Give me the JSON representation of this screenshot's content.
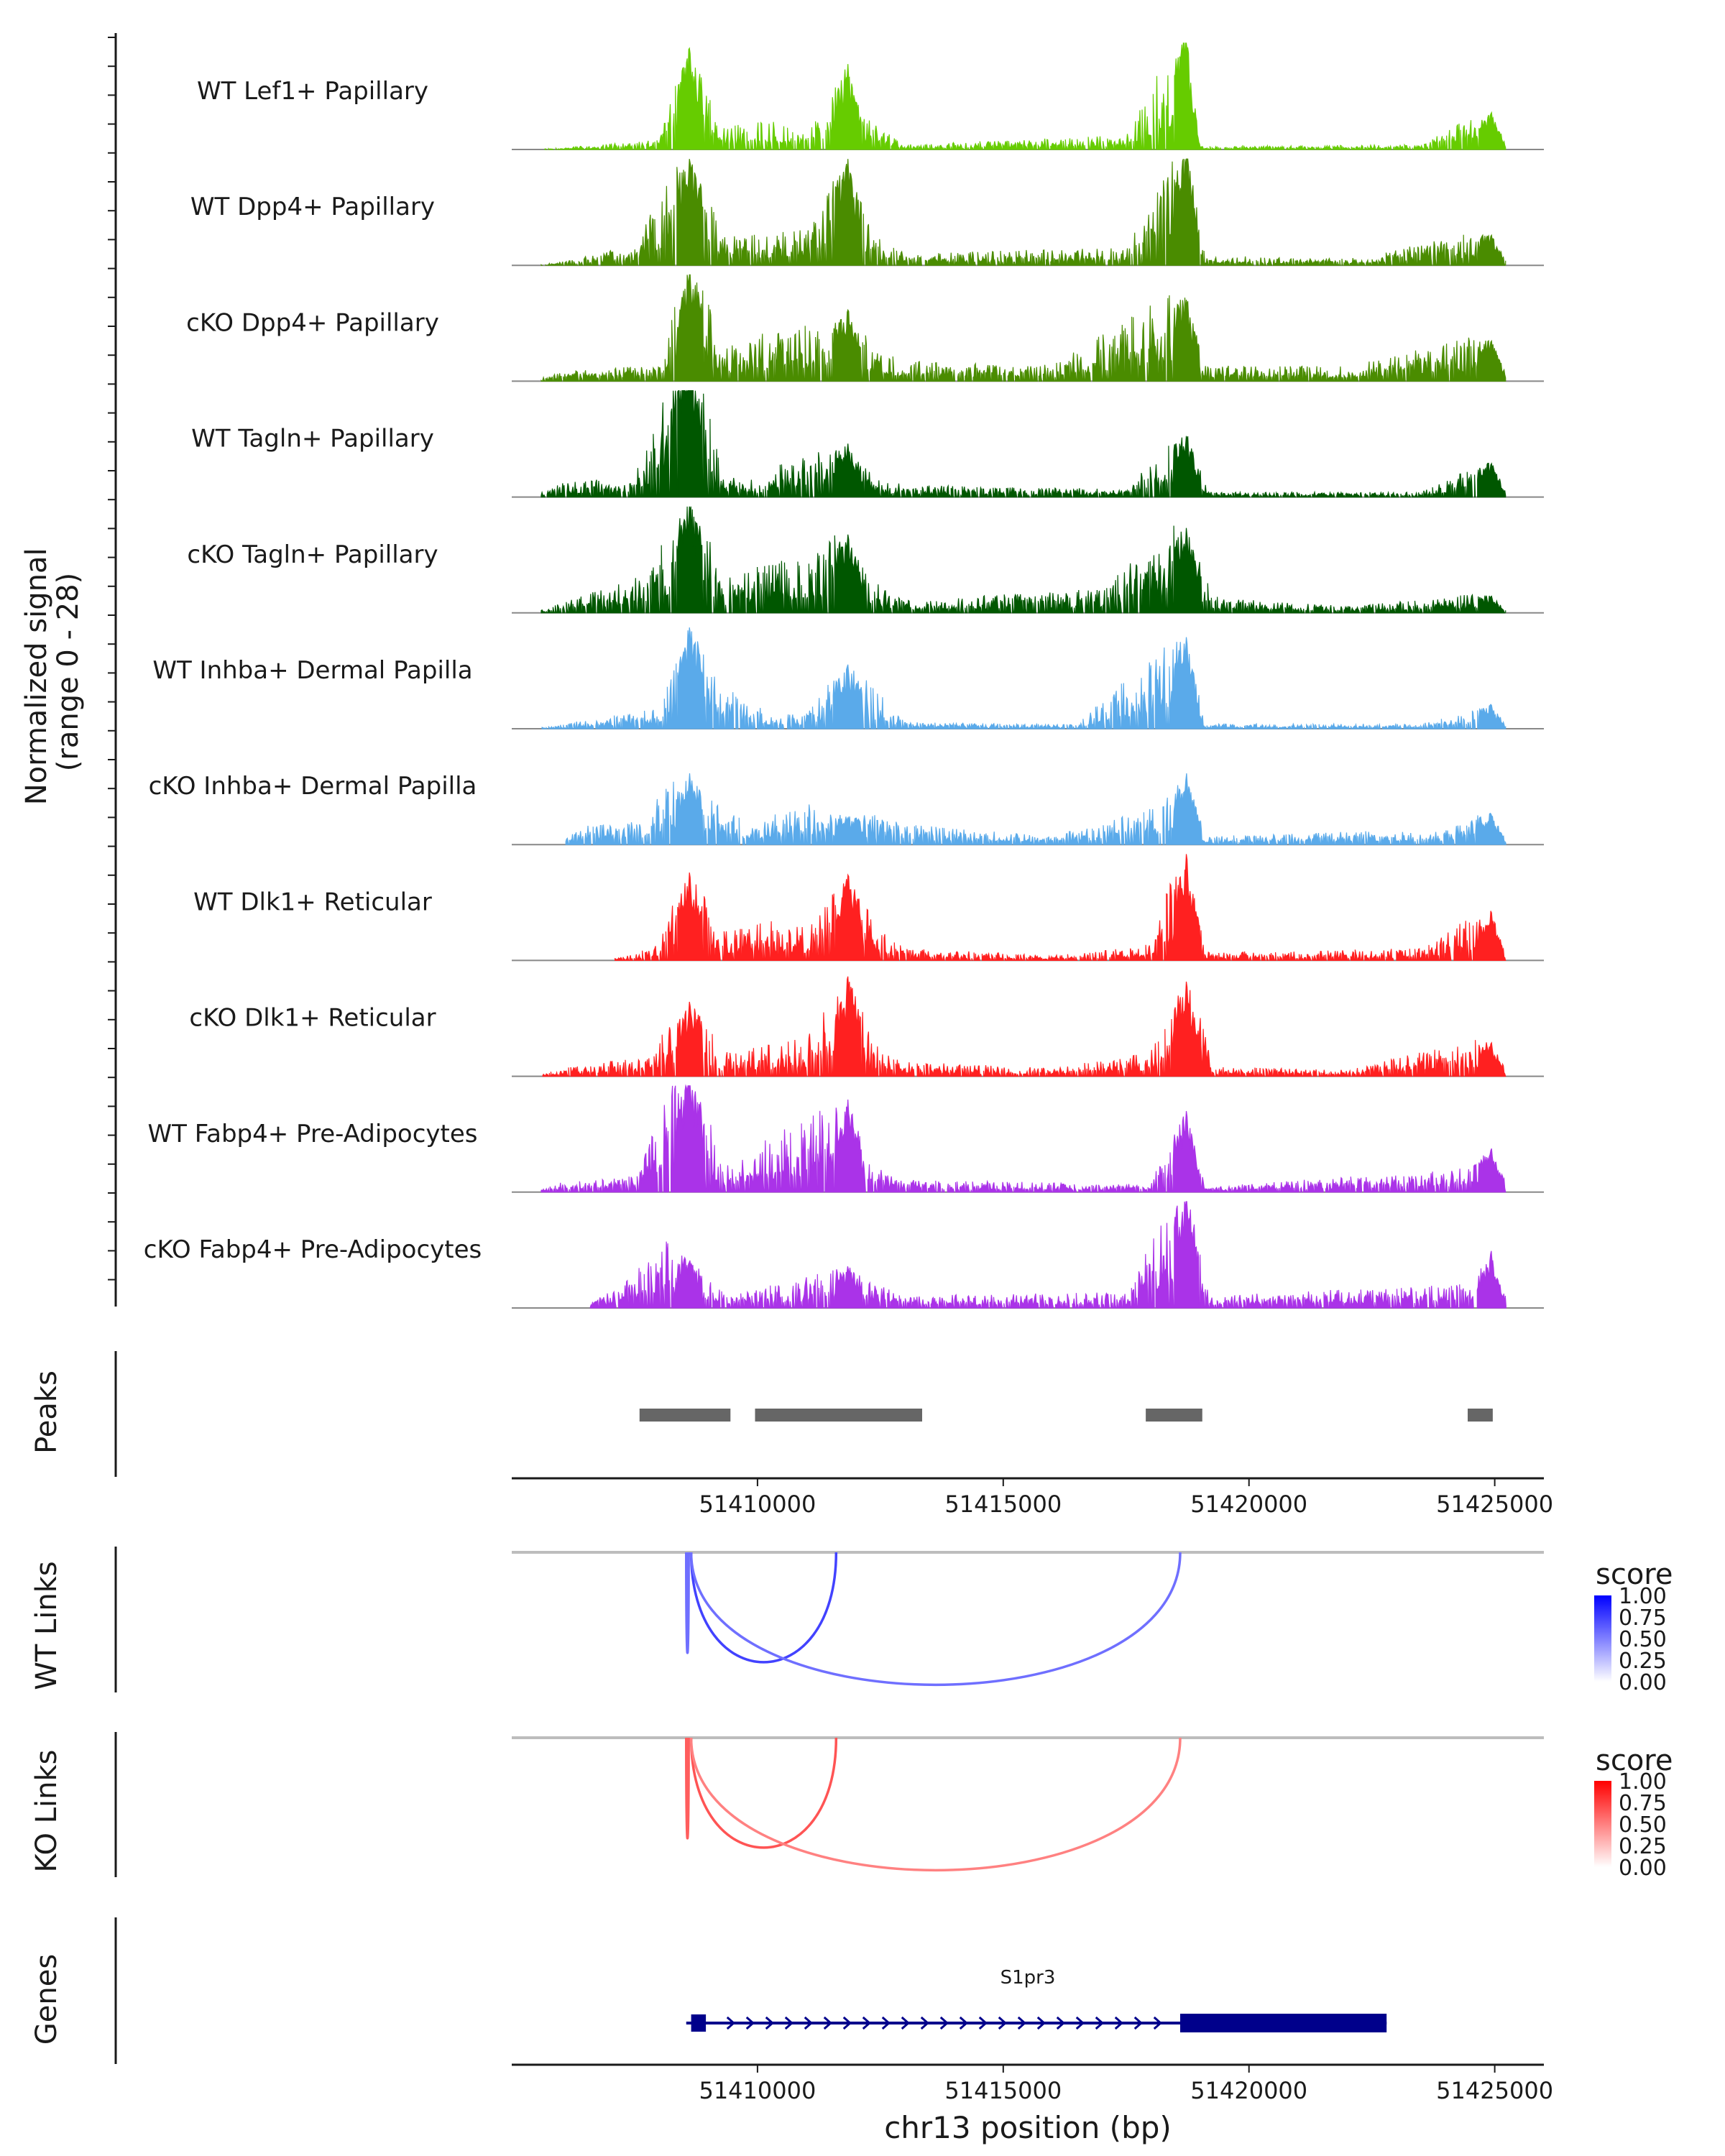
{
  "chart_data": {
    "type": "area",
    "title": "",
    "region": {
      "chrom": "chr13",
      "start": 51405000,
      "end": 51426000
    },
    "xlabel": "chr13 position (bp)",
    "x_ticks": [
      51410000,
      51415000,
      51420000,
      51425000
    ],
    "x_tick_labels": [
      "51410000",
      "51415000",
      "51420000",
      "51425000"
    ],
    "coverage": {
      "ylabel_line1": "Normalized signal",
      "ylabel_line2": "(range 0 - 28)",
      "ylim": [
        0,
        28
      ],
      "peak_positions": [
        51408620,
        51411840,
        51418730,
        51424930
      ],
      "tracks": [
        {
          "name": "WT Lef1+ Papillary",
          "color": "#66cc00",
          "profile": [
            [
              51406000,
              0.2
            ],
            [
              51408000,
              1.2
            ],
            [
              51408620,
              15
            ],
            [
              51409200,
              3
            ],
            [
              51410300,
              3.5
            ],
            [
              51411000,
              2
            ],
            [
              51411840,
              12
            ],
            [
              51412200,
              4
            ],
            [
              51413000,
              0.6
            ],
            [
              51417500,
              1.8
            ],
            [
              51418730,
              16
            ],
            [
              51419000,
              0.4
            ],
            [
              51423500,
              0.6
            ],
            [
              51424930,
              5.5
            ]
          ]
        },
        {
          "name": "WT Dpp4+ Papillary",
          "color": "#4a8c00",
          "profile": [
            [
              51406000,
              0.4
            ],
            [
              51407500,
              2.5
            ],
            [
              51408620,
              16
            ],
            [
              51409300,
              3.5
            ],
            [
              51410300,
              4
            ],
            [
              51411000,
              4.5
            ],
            [
              51411840,
              15
            ],
            [
              51412400,
              3.5
            ],
            [
              51413000,
              1.5
            ],
            [
              51417500,
              2.2
            ],
            [
              51418730,
              17
            ],
            [
              51419100,
              1.2
            ],
            [
              51422000,
              0.8
            ],
            [
              51424930,
              4.5
            ]
          ]
        },
        {
          "name": "cKO Dpp4+ Papillary",
          "color": "#4a8c00",
          "profile": [
            [
              51406000,
              1.2
            ],
            [
              51408000,
              2
            ],
            [
              51408620,
              17
            ],
            [
              51409300,
              4
            ],
            [
              51410100,
              6
            ],
            [
              51411000,
              7
            ],
            [
              51411840,
              10
            ],
            [
              51412400,
              4
            ],
            [
              51413000,
              2.5
            ],
            [
              51416000,
              2
            ],
            [
              51418730,
              12
            ],
            [
              51419100,
              2
            ],
            [
              51422000,
              1.8
            ],
            [
              51424930,
              6
            ]
          ]
        },
        {
          "name": "WT Tagln+ Papillary",
          "color": "#005700",
          "profile": [
            [
              51406000,
              1.8
            ],
            [
              51407500,
              2.6
            ],
            [
              51408620,
              21
            ],
            [
              51409300,
              2.5
            ],
            [
              51410000,
              2.2
            ],
            [
              51411000,
              6
            ],
            [
              51411840,
              7.5
            ],
            [
              51412400,
              2.5
            ],
            [
              51413000,
              1.5
            ],
            [
              51417500,
              1
            ],
            [
              51418730,
              9
            ],
            [
              51419200,
              0.6
            ],
            [
              51423500,
              0.6
            ],
            [
              51424930,
              5
            ]
          ]
        },
        {
          "name": "cKO Tagln+ Papillary",
          "color": "#005700",
          "profile": [
            [
              51406000,
              1.2
            ],
            [
              51407800,
              5
            ],
            [
              51408620,
              16
            ],
            [
              51409300,
              4
            ],
            [
              51410100,
              6
            ],
            [
              51411000,
              7.5
            ],
            [
              51411840,
              11
            ],
            [
              51412400,
              4
            ],
            [
              51413000,
              1.5
            ],
            [
              51417000,
              3
            ],
            [
              51418730,
              12
            ],
            [
              51419300,
              2
            ],
            [
              51422000,
              0.8
            ],
            [
              51424930,
              2.5
            ]
          ]
        },
        {
          "name": "WT Inhba+ Dermal Papilla",
          "color": "#5aaaea",
          "profile": [
            [
              51406000,
              0.6
            ],
            [
              51408000,
              2.5
            ],
            [
              51408620,
              15
            ],
            [
              51409200,
              6
            ],
            [
              51410200,
              2
            ],
            [
              51411000,
              2
            ],
            [
              51411840,
              9
            ],
            [
              51412400,
              5
            ],
            [
              51413000,
              0.8
            ],
            [
              51416500,
              0.5
            ],
            [
              51418730,
              13.5
            ],
            [
              51419100,
              0.6
            ],
            [
              51423500,
              0.6
            ],
            [
              51424930,
              3.5
            ]
          ]
        },
        {
          "name": "cKO Inhba+ Dermal Papilla",
          "color": "#5aaaea",
          "profile": [
            [
              51406500,
              2.5
            ],
            [
              51407500,
              3
            ],
            [
              51408620,
              10
            ],
            [
              51409300,
              4
            ],
            [
              51410000,
              3
            ],
            [
              51411000,
              5
            ],
            [
              51411840,
              4
            ],
            [
              51412400,
              4
            ],
            [
              51413000,
              2.5
            ],
            [
              51416000,
              1
            ],
            [
              51418000,
              4.5
            ],
            [
              51418730,
              10
            ],
            [
              51419100,
              1
            ],
            [
              51424000,
              2
            ],
            [
              51424930,
              4.5
            ]
          ]
        },
        {
          "name": "WT Dlk1+ Reticular",
          "color": "#ff2020",
          "profile": [
            [
              51407500,
              0.8
            ],
            [
              51408000,
              2.5
            ],
            [
              51408620,
              13
            ],
            [
              51409200,
              3.5
            ],
            [
              51410300,
              5
            ],
            [
              51411000,
              4
            ],
            [
              51411840,
              12
            ],
            [
              51412400,
              4
            ],
            [
              51413000,
              1.5
            ],
            [
              51416000,
              0.6
            ],
            [
              51418000,
              2
            ],
            [
              51418730,
              16
            ],
            [
              51419100,
              1
            ],
            [
              51423500,
              1.5
            ],
            [
              51424930,
              7
            ]
          ]
        },
        {
          "name": "cKO Dlk1+ Reticular",
          "color": "#ff2020",
          "profile": [
            [
              51406000,
              1
            ],
            [
              51407800,
              2.5
            ],
            [
              51408620,
              11
            ],
            [
              51409300,
              3
            ],
            [
              51410300,
              4
            ],
            [
              51411000,
              5
            ],
            [
              51411840,
              14
            ],
            [
              51412400,
              4
            ],
            [
              51413000,
              1.8
            ],
            [
              51416000,
              1
            ],
            [
              51418000,
              3
            ],
            [
              51418730,
              14
            ],
            [
              51419300,
              1.2
            ],
            [
              51422000,
              0.8
            ],
            [
              51424930,
              5
            ]
          ]
        },
        {
          "name": "WT Fabp4+ Pre-Adipocytes",
          "color": "#aa33e8",
          "profile": [
            [
              51406000,
              1.2
            ],
            [
              51407500,
              2
            ],
            [
              51408620,
              18
            ],
            [
              51409300,
              3
            ],
            [
              51410300,
              7
            ],
            [
              51411000,
              9
            ],
            [
              51411840,
              13
            ],
            [
              51412400,
              3
            ],
            [
              51413000,
              1.5
            ],
            [
              51418000,
              1
            ],
            [
              51418730,
              12
            ],
            [
              51419100,
              0.6
            ],
            [
              51424500,
              3
            ],
            [
              51424930,
              6.5
            ]
          ]
        },
        {
          "name": "cKO Fabp4+ Pre-Adipocytes",
          "color": "#aa33e8",
          "profile": [
            [
              51407000,
              2
            ],
            [
              51407500,
              4
            ],
            [
              51408000,
              9
            ],
            [
              51408620,
              7
            ],
            [
              51409300,
              2
            ],
            [
              51410500,
              3
            ],
            [
              51411000,
              4
            ],
            [
              51411840,
              6
            ],
            [
              51412400,
              3
            ],
            [
              51413000,
              1.5
            ],
            [
              51417500,
              2
            ],
            [
              51418730,
              17
            ],
            [
              51419200,
              1.5
            ],
            [
              51424500,
              3
            ],
            [
              51424930,
              8
            ]
          ]
        }
      ]
    },
    "peaks": {
      "label": "Peaks",
      "color": "#666666",
      "ranges": [
        [
          51407600,
          51409450
        ],
        [
          51409950,
          51413350
        ],
        [
          51417900,
          51419050
        ],
        [
          51424450,
          51424960
        ]
      ]
    },
    "links": [
      {
        "label": "WT Links",
        "color_low": "#ffffff",
        "color_high": "#0000ff",
        "legend_title": "score",
        "legend_ticks": [
          "1.00",
          "0.75",
          "0.50",
          "0.25",
          "0.00"
        ],
        "arcs": [
          {
            "from": 51408550,
            "to": 51408600,
            "score": 0.45
          },
          {
            "from": 51408650,
            "to": 51411600,
            "score": 0.7
          },
          {
            "from": 51408650,
            "to": 51418600,
            "score": 0.45
          }
        ]
      },
      {
        "label": "KO Links",
        "color_low": "#ffffff",
        "color_high": "#ff0000",
        "legend_title": "score",
        "legend_ticks": [
          "1.00",
          "0.75",
          "0.50",
          "0.25",
          "0.00"
        ],
        "arcs": [
          {
            "from": 51408550,
            "to": 51408600,
            "score": 0.55
          },
          {
            "from": 51408650,
            "to": 51411600,
            "score": 0.6
          },
          {
            "from": 51408650,
            "to": 51418600,
            "score": 0.35
          }
        ]
      }
    ],
    "genes": {
      "label": "Genes",
      "color": "#00008b",
      "items": [
        {
          "name": "S1pr3",
          "strand": "+",
          "start": 51408550,
          "end": 51422800,
          "exons": [
            [
              51408650,
              51408950
            ],
            [
              51418600,
              51422800
            ]
          ]
        }
      ]
    }
  }
}
